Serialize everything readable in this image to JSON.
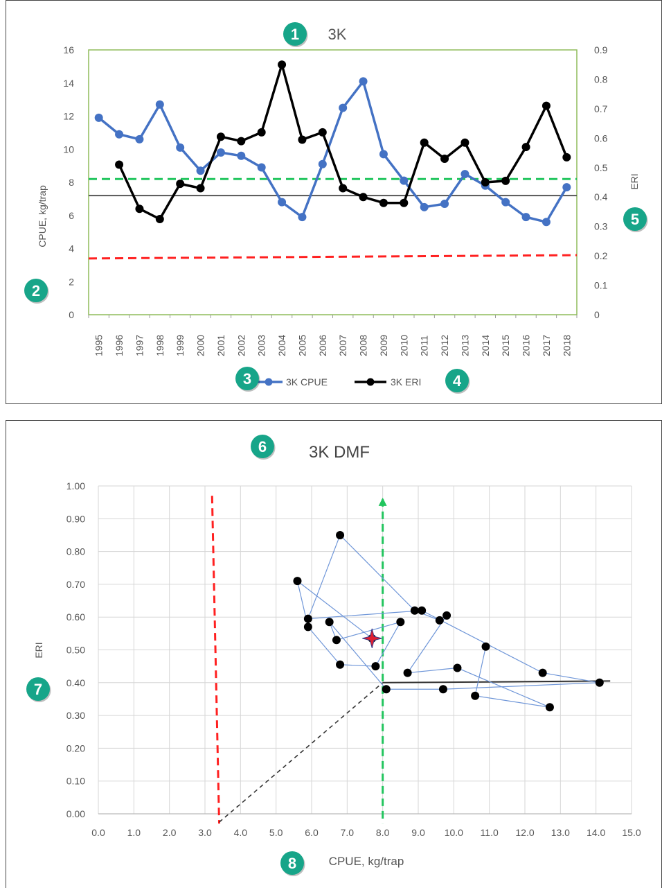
{
  "colors": {
    "cpue": "#4472c4",
    "eri": "#000000",
    "green": "#22c55e",
    "red": "#ff2020",
    "badge": "#17a589",
    "frame": "#8fbc5a"
  },
  "badges": [
    "1",
    "2",
    "3",
    "4",
    "5",
    "6",
    "7",
    "8"
  ],
  "chart_data": [
    {
      "type": "line",
      "title": "3K",
      "ylabel": "CPUE, kg/trap",
      "y2label": "ERI",
      "ylim": [
        0,
        16
      ],
      "y2lim": [
        0,
        0.9
      ],
      "yticks": [
        "0",
        "2",
        "4",
        "6",
        "8",
        "10",
        "12",
        "14",
        "16"
      ],
      "y2ticks": [
        "0",
        "0.1",
        "0.2",
        "0.3",
        "0.4",
        "0.5",
        "0.6",
        "0.7",
        "0.8",
        "0.9"
      ],
      "categories": [
        "1995",
        "1996",
        "1997",
        "1998",
        "1999",
        "2000",
        "2001",
        "2002",
        "2003",
        "2004",
        "2005",
        "2006",
        "2007",
        "2008",
        "2009",
        "2010",
        "2011",
        "2012",
        "2013",
        "2014",
        "2015",
        "2016",
        "2017",
        "2018"
      ],
      "series": [
        {
          "name": "3K CPUE",
          "axis": "left",
          "values": [
            11.9,
            10.9,
            10.6,
            12.7,
            10.1,
            8.7,
            9.8,
            9.6,
            8.9,
            6.8,
            5.9,
            9.1,
            12.5,
            14.1,
            9.7,
            8.1,
            6.5,
            6.7,
            8.5,
            7.8,
            6.8,
            5.9,
            5.6,
            7.7
          ]
        },
        {
          "name": "3K ERI",
          "axis": "right",
          "values": [
            null,
            0.51,
            0.36,
            0.325,
            0.445,
            0.43,
            0.605,
            0.59,
            0.62,
            0.85,
            0.595,
            0.62,
            0.43,
            0.4,
            0.38,
            0.38,
            0.585,
            0.53,
            0.585,
            0.45,
            0.455,
            0.57,
            0.71,
            0.535
          ]
        }
      ],
      "reference_lines": [
        {
          "axis": "left",
          "value": 8.2,
          "style": "dashed",
          "color": "#22c55e"
        },
        {
          "axis": "left",
          "value": 7.2,
          "style": "solid",
          "color": "#555555"
        },
        {
          "axis": "left",
          "value": 3.4,
          "value_end": 3.6,
          "style": "dashed",
          "color": "#ff2020"
        }
      ],
      "legend": "bottom"
    },
    {
      "type": "scatter",
      "title": "3K DMF",
      "xlabel": "CPUE, kg/trap",
      "ylabel": "ERI",
      "xlim": [
        0,
        15
      ],
      "ylim": [
        0,
        1
      ],
      "xticks": [
        "0.0",
        "1.0",
        "2.0",
        "3.0",
        "4.0",
        "5.0",
        "6.0",
        "7.0",
        "8.0",
        "9.0",
        "10.0",
        "11.0",
        "12.0",
        "13.0",
        "14.0",
        "15.0"
      ],
      "yticks": [
        "0.00",
        "0.10",
        "0.20",
        "0.30",
        "0.40",
        "0.50",
        "0.60",
        "0.70",
        "0.80",
        "0.90",
        "1.00"
      ],
      "grid": true,
      "points": [
        {
          "x": 10.9,
          "y": 0.51
        },
        {
          "x": 10.6,
          "y": 0.36
        },
        {
          "x": 12.7,
          "y": 0.325
        },
        {
          "x": 10.1,
          "y": 0.445
        },
        {
          "x": 8.7,
          "y": 0.43
        },
        {
          "x": 9.8,
          "y": 0.605
        },
        {
          "x": 9.6,
          "y": 0.59
        },
        {
          "x": 8.9,
          "y": 0.62
        },
        {
          "x": 6.8,
          "y": 0.85
        },
        {
          "x": 5.9,
          "y": 0.595
        },
        {
          "x": 9.1,
          "y": 0.62
        },
        {
          "x": 12.5,
          "y": 0.43
        },
        {
          "x": 14.1,
          "y": 0.4
        },
        {
          "x": 9.7,
          "y": 0.38
        },
        {
          "x": 8.1,
          "y": 0.38
        },
        {
          "x": 6.5,
          "y": 0.585
        },
        {
          "x": 6.7,
          "y": 0.53
        },
        {
          "x": 8.5,
          "y": 0.585
        },
        {
          "x": 7.8,
          "y": 0.45
        },
        {
          "x": 6.8,
          "y": 0.455
        },
        {
          "x": 5.9,
          "y": 0.57
        },
        {
          "x": 5.6,
          "y": 0.71
        },
        {
          "x": 7.7,
          "y": 0.535
        }
      ],
      "current_point": {
        "x": 7.7,
        "y": 0.535
      },
      "reference_lines": [
        {
          "orientation": "vertical",
          "x": 3.2,
          "x_end": 3.4,
          "y_range": [
            0,
            0.97
          ],
          "style": "dashed",
          "color": "#ff2020"
        },
        {
          "orientation": "vertical",
          "x": 8.0,
          "y_range": [
            0,
            0.96
          ],
          "style": "dashed",
          "color": "#22c55e",
          "arrow": true
        },
        {
          "from": [
            3.4,
            0.0
          ],
          "to": [
            8.0,
            0.4
          ],
          "style": "dashed",
          "color": "#333333"
        },
        {
          "from": [
            8.0,
            0.4
          ],
          "to": [
            14.4,
            0.405
          ],
          "style": "solid",
          "color": "#333333"
        }
      ]
    }
  ]
}
